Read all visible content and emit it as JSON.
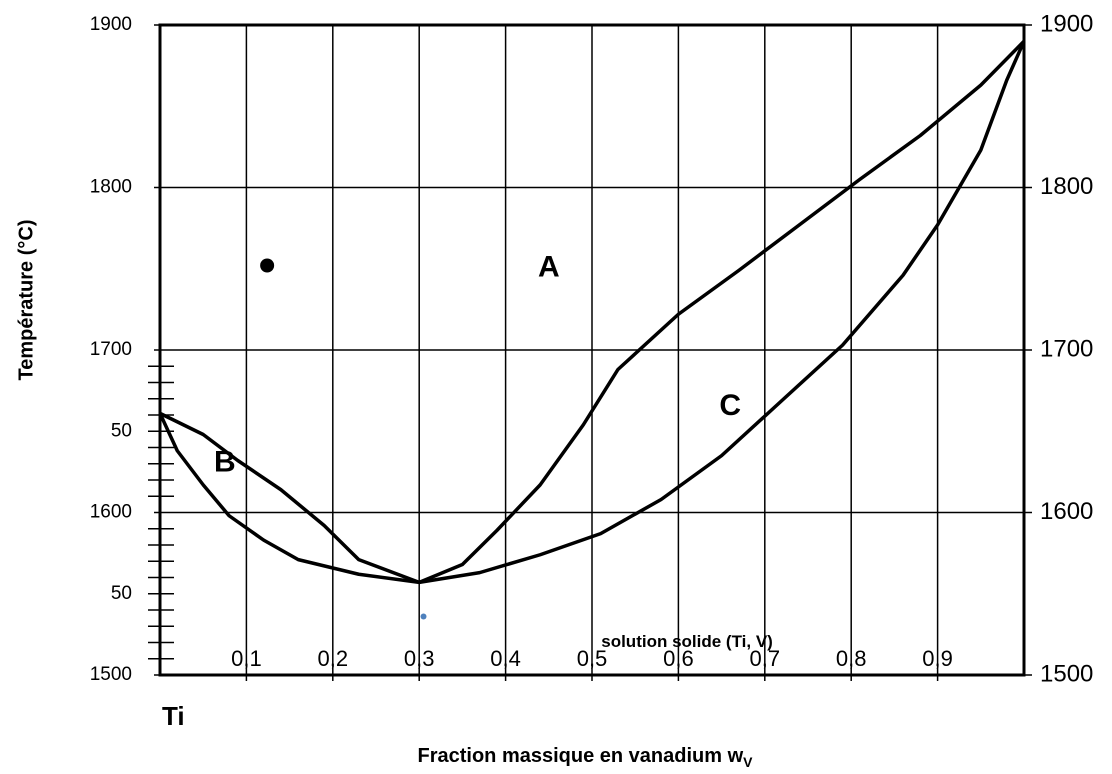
{
  "chart_data": {
    "type": "line",
    "xlabel": "Fraction massique en vanadium w",
    "xlabel_subscript": "V",
    "ylabel": "Température (°C)",
    "origin_label": "Ti",
    "xlim": [
      0,
      1
    ],
    "ylim": [
      1500,
      1900
    ],
    "xticks": [
      {
        "value": 0.1,
        "label": "0,1"
      },
      {
        "value": 0.2,
        "label": "0,2"
      },
      {
        "value": 0.3,
        "label": "0,3"
      },
      {
        "value": 0.4,
        "label": "0,4"
      },
      {
        "value": 0.5,
        "label": "0,5"
      },
      {
        "value": 0.6,
        "label": "0,6"
      },
      {
        "value": 0.7,
        "label": "0,7"
      },
      {
        "value": 0.8,
        "label": "0,8"
      },
      {
        "value": 0.9,
        "label": "0,9"
      }
    ],
    "yticks": [
      1500,
      {
        "value": 1550,
        "label": "50"
      },
      1600,
      {
        "value": 1650,
        "label": "50"
      },
      1700,
      1800,
      1900
    ],
    "y2ticks": [
      1500,
      1600,
      1700,
      1800,
      1900
    ],
    "minor_yticks": [
      1510,
      1520,
      1530,
      1540,
      1550,
      1560,
      1570,
      1580,
      1590,
      1610,
      1620,
      1630,
      1640,
      1650,
      1660,
      1670,
      1680,
      1690
    ],
    "grid_x": [
      0.1,
      0.2,
      0.3,
      0.4,
      0.5,
      0.6,
      0.7,
      0.8,
      0.9
    ],
    "grid_y": [
      1600,
      1700,
      1800
    ],
    "series": [
      {
        "color": "#000000",
        "x": [
          0,
          0.05,
          0.09,
          0.14,
          0.19,
          0.23,
          0.3,
          0.35,
          0.39,
          0.44,
          0.49,
          0.53,
          0.6,
          0.67,
          0.74,
          0.81,
          0.88,
          0.95,
          1
        ],
        "values": [
          1661,
          1648,
          1632,
          1614,
          1592,
          1571,
          1557,
          1568,
          1589,
          1617,
          1654,
          1688,
          1722,
          1749,
          1777,
          1805,
          1832,
          1863,
          1890
        ]
      },
      {
        "color": "#000000",
        "x": [
          0,
          0.02,
          0.05,
          0.08,
          0.12,
          0.16,
          0.23,
          0.3,
          0.37,
          0.44,
          0.51,
          0.58,
          0.65,
          0.72,
          0.79,
          0.86,
          0.9,
          0.95,
          0.98,
          1
        ],
        "values": [
          1661,
          1638,
          1617,
          1598,
          1583,
          1571,
          1562,
          1557,
          1563,
          1574,
          1587,
          1608,
          1635,
          1669,
          1703,
          1746,
          1777,
          1823,
          1866,
          1890
        ]
      }
    ],
    "points": [
      {
        "x": 0.124,
        "y": 1752,
        "color": "#000000"
      },
      {
        "x": 0.305,
        "y": 1536,
        "color": "#4f81bd"
      }
    ],
    "annotations": [
      {
        "text": "A",
        "x": 0.45,
        "y": 1750
      },
      {
        "text": "B",
        "x": 0.075,
        "y": 1630
      },
      {
        "text": "C",
        "x": 0.66,
        "y": 1665
      },
      {
        "text": "solution solide (Ti, V)",
        "x": 0.61,
        "y": 1520
      }
    ]
  }
}
